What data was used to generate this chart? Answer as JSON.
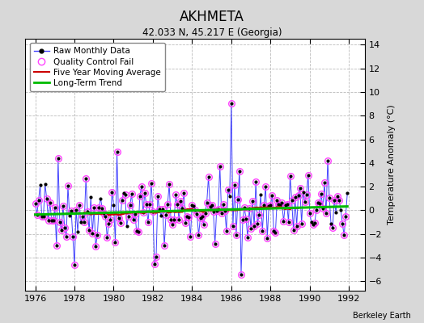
{
  "title": "AKHMETA",
  "subtitle": "42.033 N, 45.217 E (Georgia)",
  "ylabel": "Temperature Anomaly (°C)",
  "attribution": "Berkeley Earth",
  "xlim": [
    1975.5,
    1992.8
  ],
  "ylim": [
    -6.8,
    14.5
  ],
  "yticks": [
    -6,
    -4,
    -2,
    0,
    2,
    4,
    6,
    8,
    10,
    12,
    14
  ],
  "xticks": [
    1976,
    1978,
    1980,
    1982,
    1984,
    1986,
    1988,
    1990,
    1992
  ],
  "bg_color": "#d8d8d8",
  "plot_bg_color": "#ffffff",
  "raw_line_color": "#4444ff",
  "raw_marker_color": "#000000",
  "qc_fail_color": "#ff44ff",
  "moving_avg_color": "#cc0000",
  "trend_color": "#00bb00",
  "grid_color": "#bbbbbb",
  "seed": 42
}
